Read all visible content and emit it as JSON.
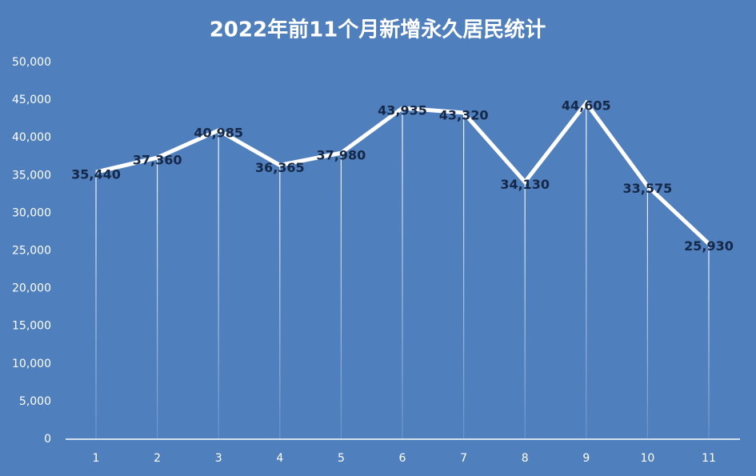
{
  "chart_data": {
    "type": "line",
    "title": "2022年前11个月新增永久居民统计",
    "categories": [
      "1",
      "2",
      "3",
      "4",
      "5",
      "6",
      "7",
      "8",
      "9",
      "10",
      "11"
    ],
    "series": [
      {
        "color": "#ffffff",
        "values": [
          35440,
          37360,
          40985,
          36365,
          37980,
          43935,
          43320,
          34130,
          44605,
          33575,
          25930
        ],
        "value_labels": [
          "35,440",
          "37,360",
          "40,985",
          "36,365",
          "37,980",
          "43,935",
          "43,320",
          "34,130",
          "44,605",
          "33,575",
          "25,930"
        ]
      }
    ],
    "ylim": [
      0,
      50000
    ],
    "yticks": [
      0,
      {
        "value": 5000,
        "label": "5,000"
      },
      {
        "value": 10000,
        "label": "10,000"
      },
      {
        "value": 15000,
        "label": "15,000"
      },
      {
        "value": 20000,
        "label": "20,000"
      },
      {
        "value": 25000,
        "label": "25,000"
      },
      {
        "value": 30000,
        "label": "30,000"
      },
      {
        "value": 35000,
        "label": "35,000"
      },
      {
        "value": 40000,
        "label": "40,000"
      },
      {
        "value": 45000,
        "label": "45,000"
      },
      {
        "value": 50000,
        "label": "50,000"
      }
    ],
    "grid": false,
    "drop_lines": true
  }
}
